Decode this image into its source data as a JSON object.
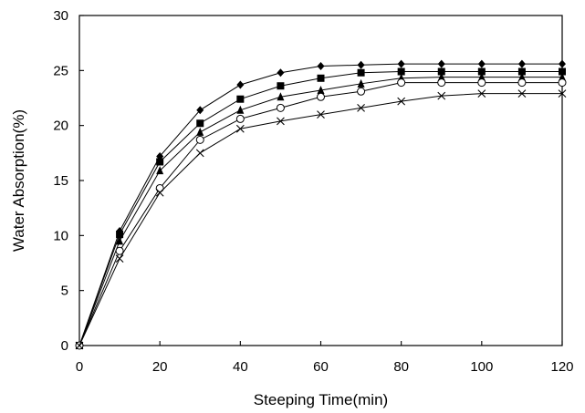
{
  "chart_data": {
    "type": "line",
    "title": "",
    "xlabel": "Steeping Time(min)",
    "ylabel": "Water Absorption(%)",
    "xlim": [
      0,
      120
    ],
    "ylim": [
      0,
      30
    ],
    "xticks": [
      0,
      20,
      40,
      60,
      80,
      100,
      120
    ],
    "yticks": [
      0,
      5,
      10,
      15,
      20,
      25,
      30
    ],
    "grid": false,
    "x": [
      0,
      10,
      20,
      30,
      40,
      50,
      60,
      70,
      80,
      90,
      100,
      110,
      120
    ],
    "series": [
      {
        "marker": "diamond-filled",
        "values": [
          0,
          10.4,
          17.2,
          21.4,
          23.7,
          24.8,
          25.4,
          25.5,
          25.6,
          25.6,
          25.6,
          25.6,
          25.6
        ]
      },
      {
        "marker": "square-filled",
        "values": [
          0,
          10.1,
          16.7,
          20.2,
          22.4,
          23.6,
          24.3,
          24.8,
          24.9,
          24.9,
          24.9,
          24.9,
          24.9
        ]
      },
      {
        "marker": "triangle-filled",
        "values": [
          0,
          9.5,
          15.9,
          19.4,
          21.4,
          22.6,
          23.2,
          23.8,
          24.3,
          24.4,
          24.4,
          24.4,
          24.4
        ]
      },
      {
        "marker": "circle-open",
        "values": [
          0,
          8.6,
          14.3,
          18.7,
          20.6,
          21.6,
          22.6,
          23.1,
          23.9,
          23.9,
          23.9,
          23.9,
          23.9
        ]
      },
      {
        "marker": "cross",
        "values": [
          0,
          7.9,
          13.9,
          17.5,
          19.7,
          20.4,
          21.0,
          21.6,
          22.2,
          22.7,
          22.9,
          22.9,
          22.9
        ]
      }
    ],
    "colors": {
      "line": "#000000",
      "marker": "#000000",
      "background": "#ffffff"
    }
  }
}
